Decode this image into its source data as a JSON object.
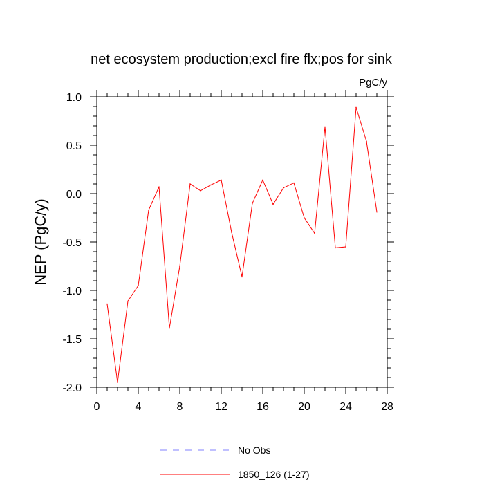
{
  "chart_data": {
    "type": "line",
    "title": "net ecosystem production;excl fire flx;pos for sink",
    "units": "PgC/y",
    "xlabel": "",
    "ylabel": "NEP  (PgC/y)",
    "xlim": [
      0,
      28
    ],
    "ylim": [
      -2.0,
      1.0
    ],
    "x_ticks": [
      0,
      4,
      8,
      12,
      16,
      20,
      24,
      28
    ],
    "x_tick_labels": [
      "0",
      "4",
      "8",
      "12",
      "16",
      "20",
      "24",
      "28"
    ],
    "y_ticks": [
      -2.0,
      -1.5,
      -1.0,
      -0.5,
      0.0,
      0.5,
      1.0
    ],
    "y_tick_labels": [
      "-2.0",
      "-1.5",
      "-1.0",
      "-0.5",
      "0.0",
      "0.5",
      "1.0"
    ],
    "grid": false,
    "legend_position": "bottom-center",
    "series": [
      {
        "name": "No Obs",
        "color": "#8080ff",
        "dash": "dashed",
        "x": [],
        "y": []
      },
      {
        "name": "1850_126 (1-27)",
        "color": "#ff0000",
        "dash": "solid",
        "x": [
          1,
          2,
          3,
          4,
          5,
          6,
          7,
          8,
          9,
          10,
          11,
          12,
          13,
          14,
          15,
          16,
          17,
          18,
          19,
          20,
          21,
          22,
          23,
          24,
          25,
          26,
          27
        ],
        "y": [
          -1.14,
          -1.95,
          -1.11,
          -0.95,
          -0.17,
          0.07,
          -1.39,
          -0.75,
          0.1,
          0.03,
          0.09,
          0.14,
          -0.4,
          -0.86,
          -0.1,
          0.14,
          -0.11,
          0.06,
          0.11,
          -0.25,
          -0.41,
          0.69,
          -0.56,
          -0.55,
          0.89,
          0.54,
          -0.19
        ]
      }
    ]
  }
}
